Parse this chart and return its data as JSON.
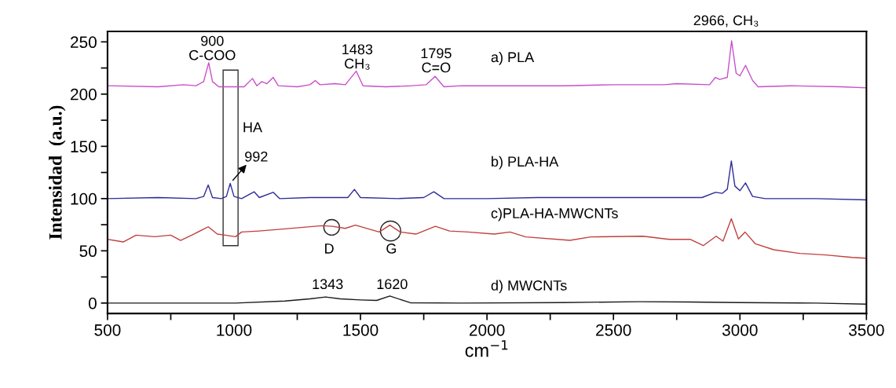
{
  "chart_data": {
    "type": "line",
    "xlabel": "cm$^{−1}$",
    "ylabel": "Intensidad  (a.u.)",
    "xlim": [
      500,
      3500
    ],
    "ylim": [
      -10,
      260
    ],
    "xticks": [
      500,
      {
        "value": 750,
        "label": null
      },
      1000,
      {
        "value": 1250,
        "label": null
      },
      1500,
      {
        "value": 1750,
        "label": null
      },
      2000,
      {
        "value": 2250,
        "label": null
      },
      2500,
      {
        "value": 2750,
        "label": null
      },
      3000,
      {
        "value": 3250,
        "label": null
      },
      3500
    ],
    "yticks": [
      0,
      {
        "value": 25,
        "label": null
      },
      50,
      {
        "value": 75,
        "label": null
      },
      100,
      {
        "value": 125,
        "label": null
      },
      150,
      {
        "value": 175,
        "label": null
      },
      200,
      {
        "value": 225,
        "label": null
      },
      250
    ],
    "grid": false,
    "legend": false,
    "marker": "none",
    "line_style": "solid",
    "series": [
      {
        "name": "a) PLA",
        "color": "#c94fc9",
        "x": [
          500,
          700,
          800,
          850,
          880,
          900,
          915,
          940,
          1000,
          1040,
          1073,
          1090,
          1110,
          1130,
          1155,
          1175,
          1250,
          1300,
          1321,
          1340,
          1400,
          1440,
          1483,
          1510,
          1600,
          1700,
          1760,
          1795,
          1830,
          1900,
          2100,
          2300,
          2500,
          2700,
          2750,
          2880,
          2903,
          2920,
          2950,
          2967,
          2985,
          3000,
          3022,
          3050,
          3072,
          3200,
          3400,
          3500
        ],
        "values": [
          208,
          207,
          209,
          208,
          212,
          230,
          212,
          207,
          207,
          207,
          215,
          208,
          212,
          210,
          216,
          208,
          207,
          209,
          213,
          209,
          210,
          209,
          222,
          208,
          207,
          208,
          209,
          217,
          207,
          208,
          208,
          208,
          209,
          209,
          210,
          209,
          216,
          214,
          216,
          251,
          220,
          217.5,
          227.5,
          213,
          207,
          208,
          207,
          206
        ]
      },
      {
        "name": "b) PLA-HA",
        "color": "#2d2d9a",
        "x": [
          500,
          700,
          850,
          880,
          898,
          915,
          950,
          970,
          985,
          1000,
          1030,
          1080,
          1100,
          1155,
          1180,
          1300,
          1400,
          1450,
          1476,
          1500,
          1650,
          1750,
          1790,
          1830,
          2000,
          2200,
          2400,
          2600,
          2850,
          2903,
          2930,
          2950,
          2966,
          2980,
          3000,
          3022,
          3050,
          3100,
          3300,
          3500
        ],
        "values": [
          100,
          101,
          100,
          102,
          113,
          101,
          100,
          102,
          114.5,
          102,
          100,
          106.5,
          101,
          106,
          100,
          101,
          101,
          101,
          108.8,
          101,
          100,
          101,
          106.5,
          100,
          100,
          101,
          101,
          101,
          101,
          106,
          105,
          109,
          136,
          112,
          107.5,
          115,
          102,
          100,
          100,
          98.8
        ]
      },
      {
        "name": "c)PLA-HA-MWCNTs",
        "color": "#c0403f",
        "x": [
          500,
          562,
          613,
          686,
          750,
          789,
          841,
          898,
          934,
          965,
          1006,
          1030,
          1099,
          1202,
          1347,
          1388,
          1440,
          1480,
          1574,
          1616,
          1657,
          1719,
          1796,
          1852,
          1925,
          2029,
          2091,
          2153,
          2328,
          2410,
          2617,
          2720,
          2803,
          2855,
          2906,
          2933,
          2966,
          2994,
          3020,
          3061,
          3134,
          3237,
          3340,
          3444,
          3495
        ],
        "values": [
          61,
          58.5,
          65,
          63.5,
          65,
          60,
          66,
          73,
          66,
          65,
          63.5,
          68,
          69,
          71,
          74,
          73.5,
          71.5,
          74.6,
          68,
          74.6,
          68,
          66,
          73.5,
          69,
          68,
          66,
          68,
          63.3,
          60,
          63.3,
          64,
          61,
          61,
          55,
          64,
          59.3,
          80.7,
          61.3,
          68,
          56.7,
          51,
          47.5,
          46,
          43.7,
          43
        ]
      },
      {
        "name": "d) MWCNTs",
        "color": "#1a1a1a",
        "x": [
          500,
          800,
          1006,
          1202,
          1300,
          1362,
          1420,
          1500,
          1564,
          1616,
          1697,
          1900,
          2300,
          2600,
          2800,
          3000,
          3300,
          3500
        ],
        "values": [
          0,
          0,
          0,
          2,
          4,
          5.8,
          4,
          3,
          2.5,
          6.7,
          0.3,
          0,
          0.5,
          1.3,
          1,
          0.5,
          0,
          -1
        ]
      }
    ],
    "annotations": [
      "900\nC-COO",
      "1483\nCH₃",
      "1795\nC=O",
      "2966, CH₃",
      "HA",
      "992",
      "D",
      "G",
      "1343",
      "1620"
    ]
  }
}
